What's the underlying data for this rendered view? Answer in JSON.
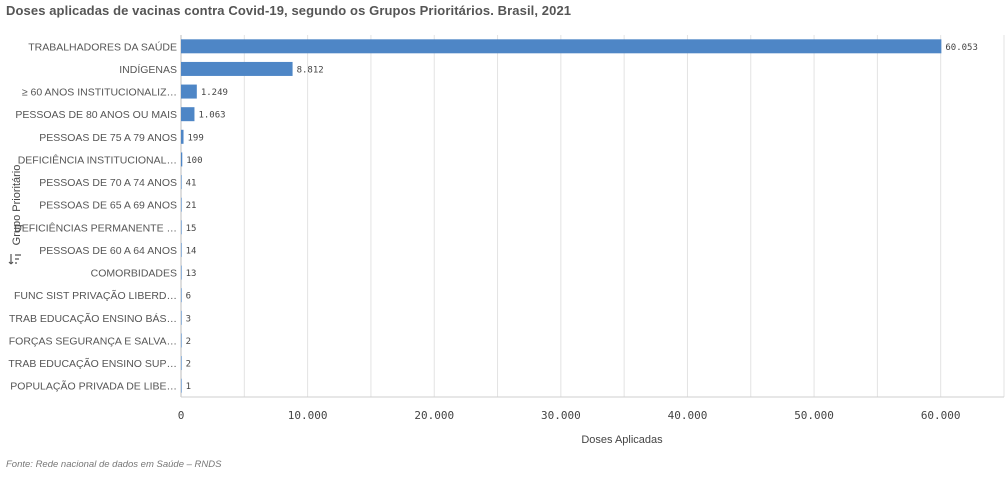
{
  "page": {
    "title": "Doses aplicadas de vacinas contra Covid-19, segundo os Grupos Prioritários. Brasil, 2021",
    "source": "Fonte: Rede nacional de dados em Saúde – RNDS",
    "y_axis_icon": "sort-icon"
  },
  "chart_data": {
    "type": "bar",
    "orientation": "horizontal",
    "xlabel": "Doses Aplicadas",
    "ylabel": "Grupo Prioritário",
    "xlim": [
      0,
      65000
    ],
    "xticks": [
      0,
      10000,
      20000,
      30000,
      40000,
      50000,
      60000
    ],
    "xtick_labels": [
      "0",
      "10.000",
      "20.000",
      "30.000",
      "40.000",
      "50.000",
      "60.000"
    ],
    "grid": true,
    "bar_color": "#4e86c6",
    "categories": [
      "TRABALHADORES DA SAÚDE",
      "INDÍGENAS",
      "≥ 60 ANOS INSTITUCIONALIZ…",
      "PESSOAS DE 80 ANOS OU MAIS",
      "PESSOAS DE 75 A 79 ANOS",
      "DEFICIÊNCIA INSTITUCIONAL…",
      "PESSOAS DE 70 A 74 ANOS",
      "PESSOAS DE 65 A 69 ANOS",
      "DEFICIÊNCIAS PERMANENTE …",
      "PESSOAS DE 60 A 64 ANOS",
      "COMORBIDADES",
      "FUNC SIST PRIVAÇÃO LIBERD…",
      "TRAB EDUCAÇÃO ENSINO BÁS…",
      "FORÇAS SEGURANÇA E SALVA…",
      "TRAB EDUCAÇÃO ENSINO SUP…",
      "POPULAÇÃO PRIVADA DE LIBE…"
    ],
    "values": [
      60053,
      8812,
      1249,
      1063,
      199,
      100,
      41,
      21,
      15,
      14,
      13,
      6,
      3,
      2,
      2,
      1
    ],
    "value_labels": [
      "60.053",
      "8.812",
      "1.249",
      "1.063",
      "199",
      "100",
      "41",
      "21",
      "15",
      "14",
      "13",
      "6",
      "3",
      "2",
      "2",
      "1"
    ]
  }
}
